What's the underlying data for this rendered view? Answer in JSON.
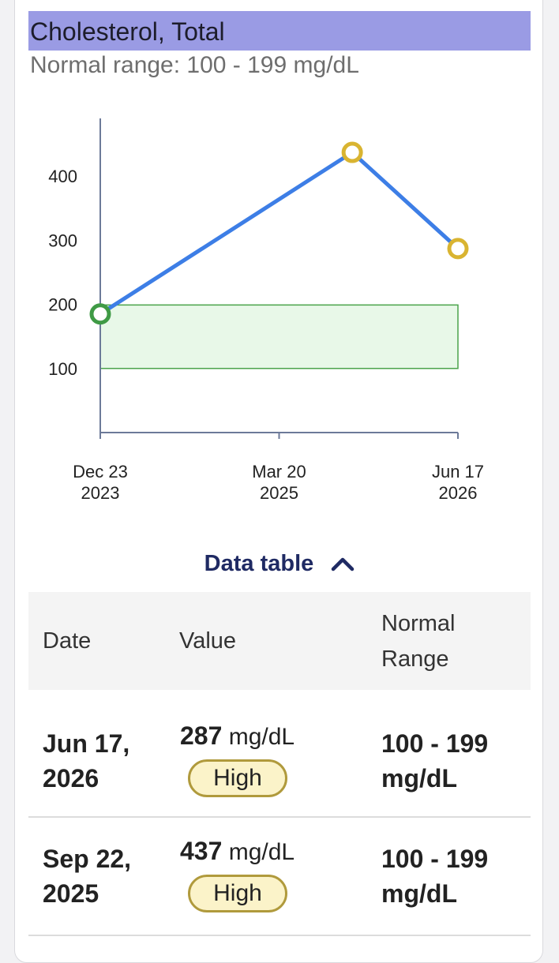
{
  "header": {
    "title": "Cholesterol, Total",
    "normal_range": "Normal range: 100 - 199 mg/dL"
  },
  "chart_data": {
    "type": "line",
    "title": "",
    "xlabel": "",
    "ylabel": "",
    "x_tick_labels": [
      [
        "Dec 23",
        "2023"
      ],
      [
        "Mar 20",
        "2025"
      ],
      [
        "Jun 17",
        "2026"
      ]
    ],
    "y_tick_labels": [
      "100",
      "200",
      "300",
      "400"
    ],
    "ylim": [
      0,
      490
    ],
    "normal_band": [
      100,
      199
    ],
    "series": [
      {
        "points": [
          {
            "date": "2023-12-23",
            "value": 185,
            "status": "normal"
          },
          {
            "date": "2025-09-22",
            "value": 437,
            "status": "high"
          },
          {
            "date": "2026-06-17",
            "value": 287,
            "status": "high"
          }
        ]
      }
    ],
    "colors": {
      "line": "#3d7ee6",
      "band_fill": "#e8f8e8",
      "band_stroke": "#4aa34a",
      "normal_point": "#3f9a45",
      "high_point": "#d9b431",
      "axis": "#6c7a99"
    }
  },
  "data_table": {
    "toggle_label": "Data table",
    "headers": {
      "date": "Date",
      "value": "Value",
      "range_line1": "Normal",
      "range_line2": "Range"
    },
    "rows": [
      {
        "date_line1": "Jun 17,",
        "date_line2": "2026",
        "value": "287",
        "unit": "mg/dL",
        "flag": "High",
        "range_line1": "100 - 199",
        "range_line2": "mg/dL"
      },
      {
        "date_line1": "Sep 22,",
        "date_line2": "2025",
        "value": "437",
        "unit": "mg/dL",
        "flag": "High",
        "range_line1": "100 - 199",
        "range_line2": "mg/dL"
      }
    ]
  }
}
